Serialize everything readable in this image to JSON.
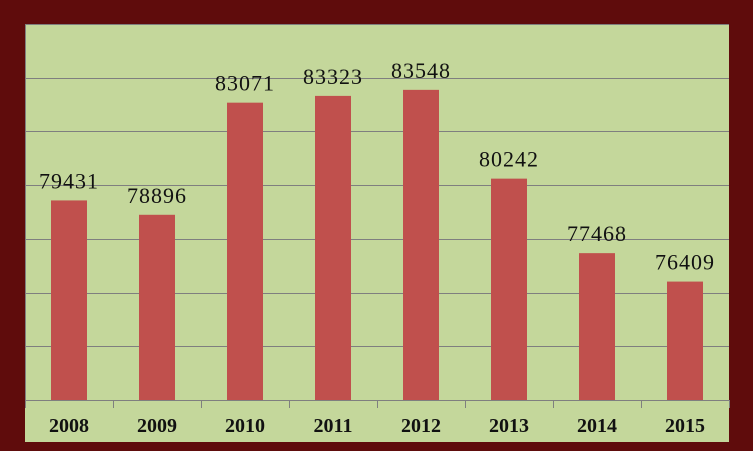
{
  "chart_data": {
    "type": "bar",
    "categories": [
      "2008",
      "2009",
      "2010",
      "2011",
      "2012",
      "2013",
      "2014",
      "2015"
    ],
    "values": [
      79431,
      78896,
      83071,
      83323,
      83548,
      80242,
      77468,
      76409
    ],
    "data_labels": [
      "79431",
      "78896",
      "83071",
      "83323",
      "83548",
      "80242",
      "77468",
      "76409"
    ],
    "ylim": [
      72000,
      86000
    ],
    "yticks": [
      72000,
      74000,
      76000,
      78000,
      80000,
      82000,
      84000,
      86000
    ],
    "grid": true,
    "ytick_labels_visible": false,
    "colors": {
      "bar": "#c0504d",
      "plot_background": "#c4d79b",
      "frame": "#5f0c0c",
      "grid": "#7f7f7f"
    }
  }
}
